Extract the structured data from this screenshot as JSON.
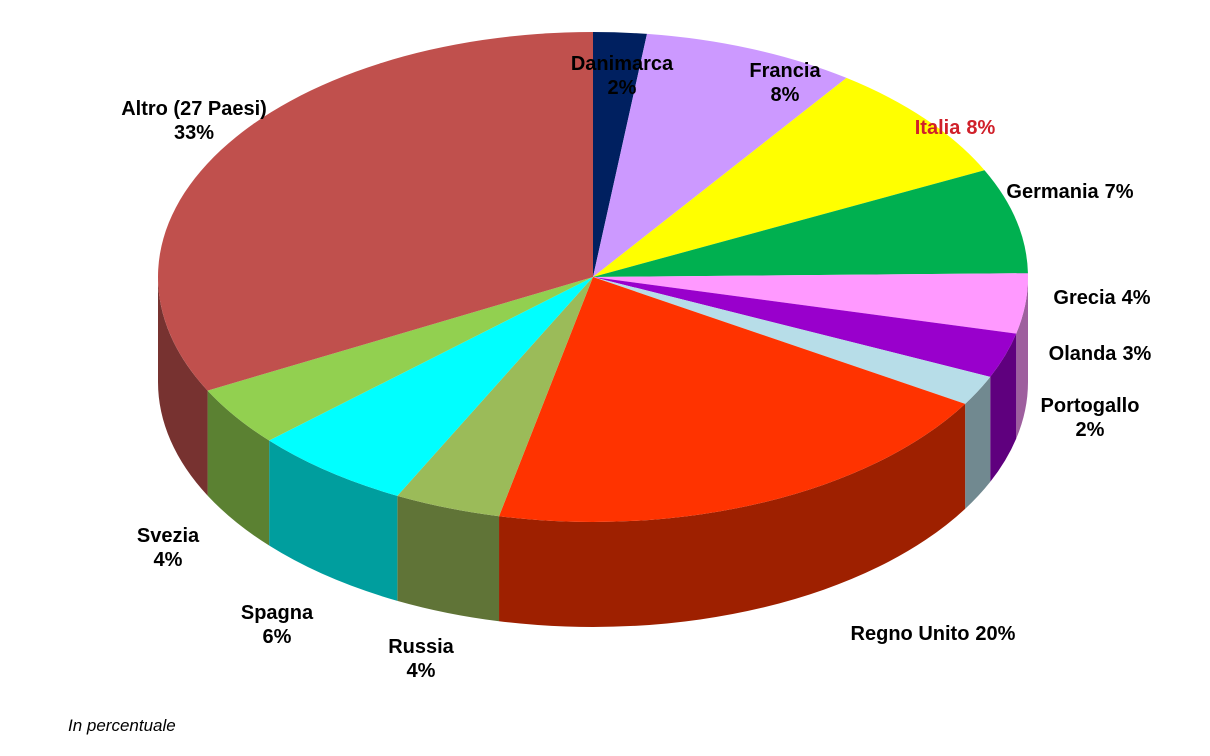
{
  "chart_data": {
    "type": "pie3d",
    "categories": [
      "Danimarca",
      "Francia",
      "Italia",
      "Germania",
      "Grecia",
      "Olanda",
      "Portogallo",
      "Regno Unito",
      "Russia",
      "Spagna",
      "Svezia",
      "Altro (27 Paesi)"
    ],
    "values": [
      2,
      8,
      8,
      7,
      4,
      3,
      2,
      20,
      4,
      6,
      4,
      33
    ],
    "value_labels": [
      "2%",
      "8%",
      "8%",
      "7%",
      "4%",
      "3%",
      "2%",
      "20%",
      "4%",
      "6%",
      "4%",
      "33%"
    ],
    "colors": [
      "#002060",
      "#cc99ff",
      "#ffff00",
      "#00b050",
      "#ff99ff",
      "#9900cc",
      "#b7dde8",
      "#ff3300",
      "#9bbb59",
      "#00ffff",
      "#92d050",
      "#c0504d"
    ],
    "label_colors": [
      "#000000",
      "#000000",
      "#d0202a",
      "#000000",
      "#000000",
      "#000000",
      "#000000",
      "#000000",
      "#000000",
      "#000000",
      "#000000",
      "#000000"
    ],
    "note": "In percentuale"
  }
}
